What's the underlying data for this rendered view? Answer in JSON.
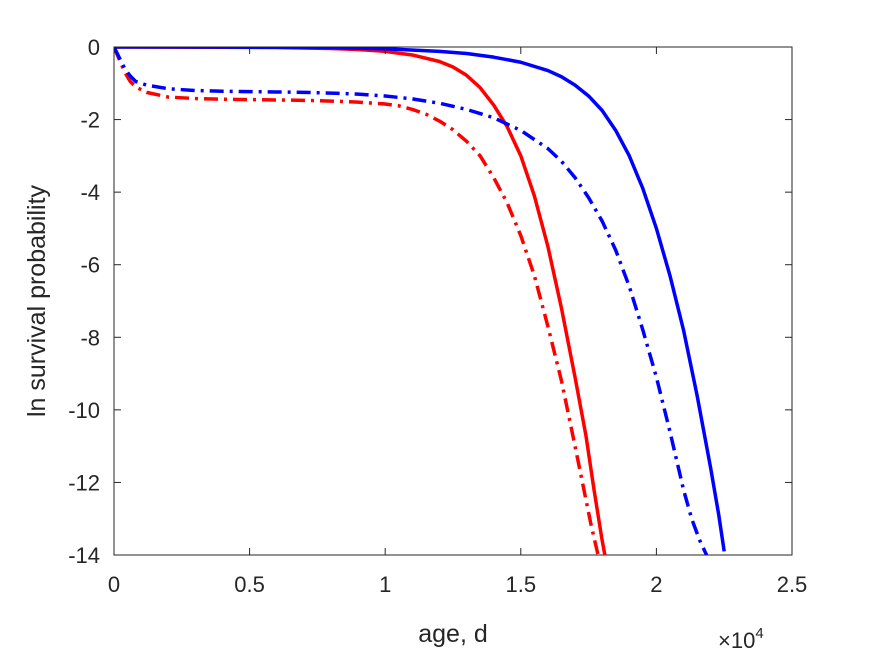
{
  "chart_data": {
    "type": "line",
    "title": "",
    "xlabel": "age, d",
    "ylabel": "ln survival probability",
    "x_exponent_label": {
      "base": "×10",
      "exponent": "4"
    },
    "xlim": [
      0,
      25000
    ],
    "ylim": [
      -14,
      0
    ],
    "xticks": [
      0,
      5000,
      10000,
      15000,
      20000,
      25000
    ],
    "xtick_labels": [
      "0",
      "0.5",
      "1",
      "1.5",
      "2",
      "2.5"
    ],
    "yticks": [
      0,
      -2,
      -4,
      -6,
      -8,
      -10,
      -12,
      -14
    ],
    "ytick_labels": [
      "0",
      "-2",
      "-4",
      "-6",
      "-8",
      "-10",
      "-12",
      "-14"
    ],
    "grid": false,
    "legend": "none",
    "series": [
      {
        "color": "#ff0000",
        "style": "solid",
        "x": [
          0,
          2000,
          4000,
          6000,
          8000,
          9000,
          10000,
          11000,
          12000,
          12500,
          13000,
          13500,
          14000,
          14500,
          15000,
          15500,
          16000,
          16500,
          17000,
          17400,
          17700,
          18000,
          18100
        ],
        "y": [
          0,
          -0.002,
          -0.006,
          -0.015,
          -0.04,
          -0.07,
          -0.12,
          -0.22,
          -0.4,
          -0.55,
          -0.78,
          -1.12,
          -1.6,
          -2.2,
          -3.0,
          -4.1,
          -5.5,
          -7.2,
          -9.1,
          -10.7,
          -12.2,
          -13.6,
          -14.0
        ]
      },
      {
        "color": "#ff0000",
        "style": "dashdot",
        "x": [
          0,
          200,
          400,
          600,
          800,
          1200,
          2000,
          3000,
          4000,
          5000,
          6000,
          7000,
          8000,
          9000,
          10000,
          10500,
          11000,
          11500,
          12000,
          12500,
          13000,
          13500,
          14000,
          14500,
          15000,
          15500,
          16000,
          16500,
          17000,
          17300,
          17600,
          17850
        ],
        "y": [
          0,
          -0.35,
          -0.7,
          -0.95,
          -1.1,
          -1.25,
          -1.38,
          -1.42,
          -1.44,
          -1.45,
          -1.46,
          -1.47,
          -1.49,
          -1.52,
          -1.57,
          -1.62,
          -1.72,
          -1.85,
          -2.04,
          -2.28,
          -2.6,
          -3.0,
          -3.6,
          -4.3,
          -5.2,
          -6.3,
          -7.7,
          -9.2,
          -11.0,
          -12.1,
          -13.2,
          -14.0
        ]
      },
      {
        "color": "#0000ff",
        "style": "solid",
        "x": [
          0,
          2000,
          4000,
          6000,
          8000,
          10000,
          12000,
          13000,
          14000,
          15000,
          16000,
          16500,
          17000,
          17500,
          18000,
          18500,
          19000,
          19500,
          20000,
          20500,
          21000,
          21500,
          22000,
          22300,
          22500
        ],
        "y": [
          0,
          -0.001,
          -0.003,
          -0.008,
          -0.018,
          -0.05,
          -0.12,
          -0.18,
          -0.28,
          -0.42,
          -0.65,
          -0.82,
          -1.05,
          -1.35,
          -1.75,
          -2.3,
          -3.0,
          -3.9,
          -5.0,
          -6.3,
          -7.8,
          -9.6,
          -11.6,
          -12.9,
          -13.9
        ]
      },
      {
        "color": "#0000ff",
        "style": "dashdot",
        "x": [
          0,
          200,
          400,
          600,
          800,
          1200,
          2000,
          3000,
          4000,
          5000,
          6000,
          7000,
          8000,
          9000,
          10000,
          11000,
          12000,
          13000,
          14000,
          15000,
          16000,
          16500,
          17000,
          17500,
          18000,
          18500,
          19000,
          19500,
          20000,
          20500,
          21000,
          21300,
          21600,
          21850
        ],
        "y": [
          0,
          -0.3,
          -0.6,
          -0.8,
          -0.95,
          -1.05,
          -1.15,
          -1.2,
          -1.22,
          -1.23,
          -1.24,
          -1.25,
          -1.27,
          -1.3,
          -1.35,
          -1.43,
          -1.55,
          -1.72,
          -1.95,
          -2.3,
          -2.8,
          -3.15,
          -3.6,
          -4.15,
          -4.8,
          -5.6,
          -6.6,
          -7.8,
          -9.1,
          -10.6,
          -12.2,
          -13.0,
          -13.6,
          -14.0
        ]
      }
    ]
  }
}
